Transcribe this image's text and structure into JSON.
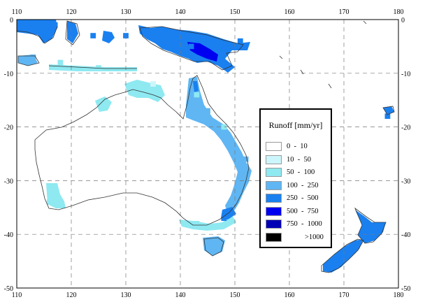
{
  "map": {
    "lon_ticks": [
      "110",
      "120",
      "130",
      "140",
      "150",
      "160",
      "170",
      "180"
    ],
    "lat_ticks": [
      "0",
      "-10",
      "-20",
      "-30",
      "-40",
      "-50"
    ],
    "lon_range": [
      110,
      180
    ],
    "lat_range": [
      -50,
      0
    ],
    "grid": true,
    "grid_step_degrees": 10
  },
  "legend": {
    "title": "Runoff [mm/yr]",
    "placement": "center-right",
    "classes": [
      {
        "label": "0  -  10",
        "color": "#ffffff"
      },
      {
        "label": "10  -  50",
        "color": "#ccf6fb"
      },
      {
        "label": "50  -  100",
        "color": "#8ee9f1"
      },
      {
        "label": "100  -  250",
        "color": "#5fb6f3"
      },
      {
        "label": "250  -  500",
        "color": "#1a80f0"
      },
      {
        "label": "500  -  750",
        "color": "#0000f0"
      },
      {
        "label": "750  -  1000",
        "color": "#0000b4"
      },
      {
        "label": ">1000",
        "color": "#000000"
      }
    ]
  },
  "runoff_cells": [
    {
      "lon": 112,
      "lat": -2,
      "class": 4
    },
    {
      "lon": 115,
      "lat": -2,
      "class": 4
    },
    {
      "lon": 117,
      "lat": -1,
      "class": 4
    },
    {
      "lon": 120,
      "lat": -2,
      "class": 4
    },
    {
      "lon": 124,
      "lat": -3,
      "class": 4
    },
    {
      "lon": 130,
      "lat": -3,
      "class": 4
    },
    {
      "lon": 137,
      "lat": -3,
      "class": 4
    },
    {
      "lon": 142,
      "lat": -5,
      "class": 4
    },
    {
      "lon": 145,
      "lat": -6,
      "class": 5
    },
    {
      "lon": 148,
      "lat": -5,
      "class": 4
    },
    {
      "lon": 151,
      "lat": -4,
      "class": 4
    },
    {
      "lon": 113,
      "lat": -7,
      "class": 3
    },
    {
      "lon": 118,
      "lat": -8,
      "class": 2
    },
    {
      "lon": 125,
      "lat": -9,
      "class": 2
    },
    {
      "lon": 132,
      "lat": -12,
      "class": 2
    },
    {
      "lon": 135,
      "lat": -12,
      "class": 1
    },
    {
      "lon": 143,
      "lat": -14,
      "class": 2
    },
    {
      "lon": 145,
      "lat": -17,
      "class": 3
    },
    {
      "lon": 148,
      "lat": -20,
      "class": 2
    },
    {
      "lon": 152,
      "lat": -26,
      "class": 3
    },
    {
      "lon": 152,
      "lat": -30,
      "class": 3
    },
    {
      "lon": 150,
      "lat": -34,
      "class": 3
    },
    {
      "lon": 148,
      "lat": -37,
      "class": 4
    },
    {
      "lon": 143,
      "lat": -38,
      "class": 2
    },
    {
      "lon": 146,
      "lat": -42,
      "class": 3
    },
    {
      "lon": 116,
      "lat": -34,
      "class": 2
    },
    {
      "lon": 171,
      "lat": -43,
      "class": 4
    },
    {
      "lon": 168,
      "lat": -45,
      "class": 4
    },
    {
      "lon": 175,
      "lat": -39,
      "class": 4
    },
    {
      "lon": 178,
      "lat": -18,
      "class": 4
    }
  ]
}
